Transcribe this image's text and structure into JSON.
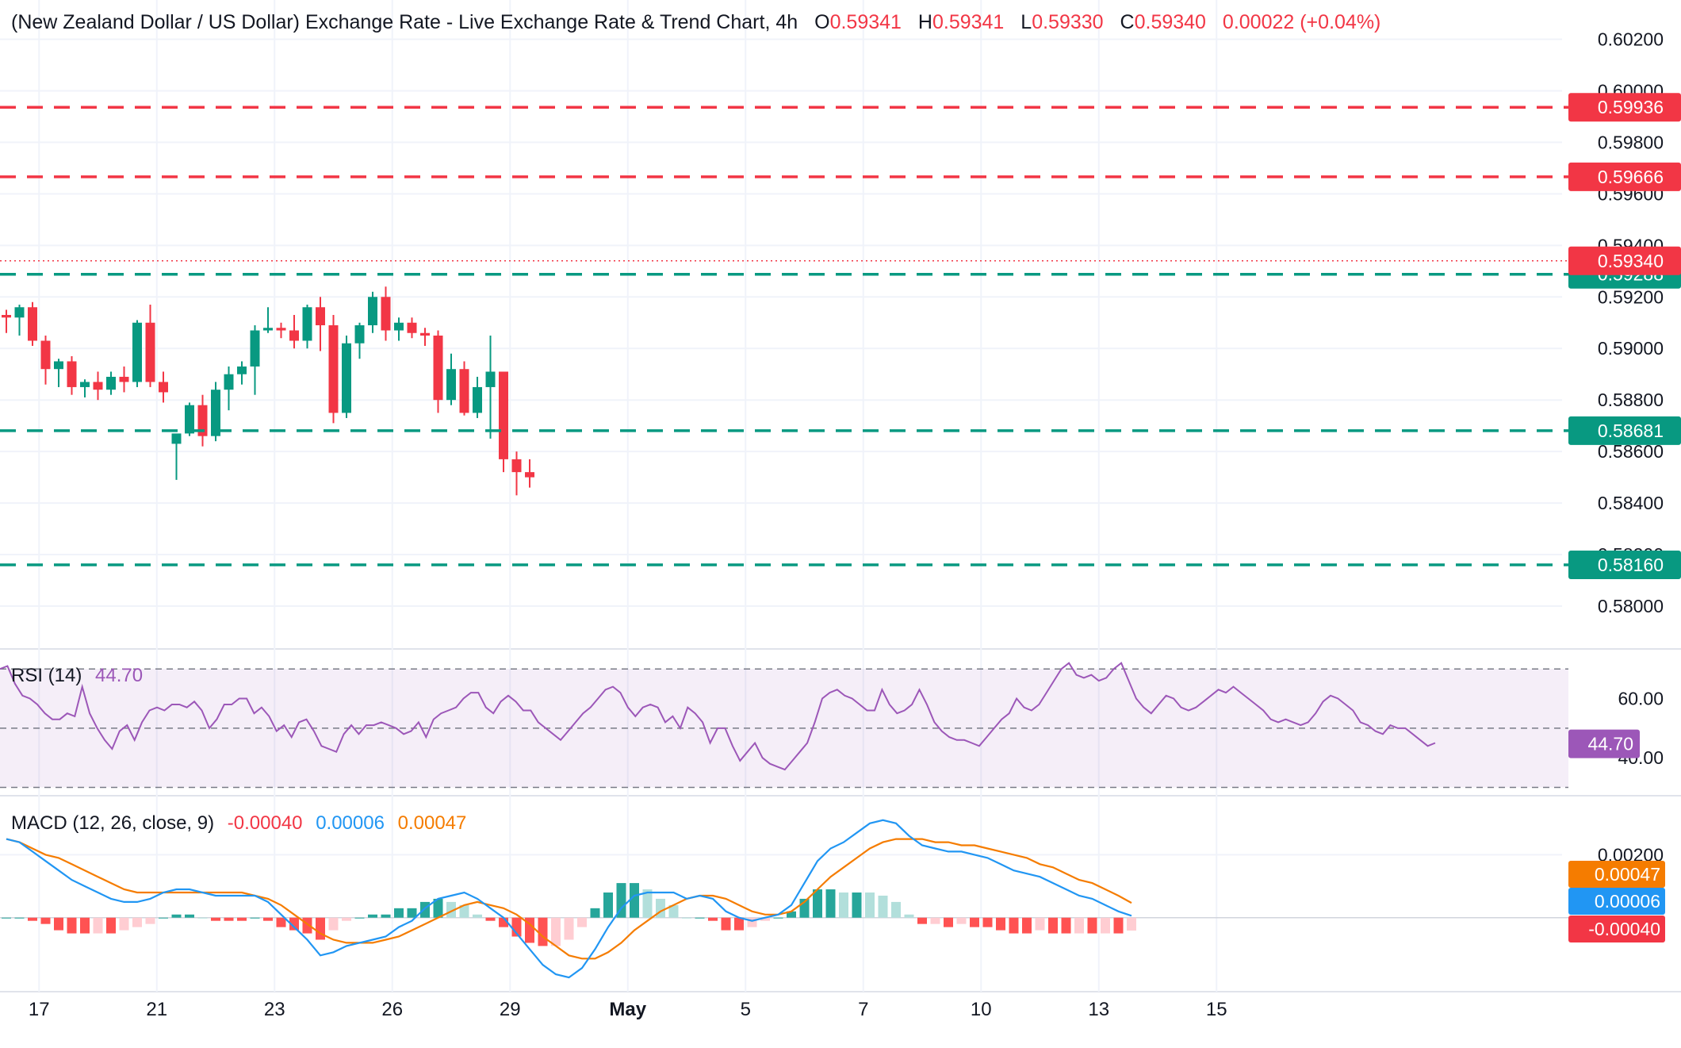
{
  "header": {
    "title": "(New Zealand Dollar / US Dollar) Exchange Rate - Live Exchange Rate & Trend Chart",
    "interval": "4h",
    "open_label": "O",
    "open": "0.59341",
    "high_label": "H",
    "high": "0.59341",
    "low_label": "L",
    "low": "0.59330",
    "close_label": "C",
    "close": "0.59340",
    "change": "0.00022 (+0.04%)"
  },
  "chart_data": [
    {
      "type": "candlestick",
      "title": "(New Zealand Dollar / US Dollar) Exchange Rate - Live Exchange Rate & Trend Chart",
      "ylim": [
        0.5792,
        0.6026
      ],
      "y_ticks": [
        "0.60200",
        "0.60000",
        "0.59800",
        "0.59600",
        "0.59400",
        "0.59200",
        "0.59000",
        "0.58800",
        "0.58600",
        "0.58400",
        "0.58200",
        "0.58000"
      ],
      "x_ticks": [
        {
          "label": "17",
          "idx": 2.5
        },
        {
          "label": "21",
          "idx": 11.5
        },
        {
          "label": "23",
          "idx": 20.5
        },
        {
          "label": "26",
          "idx": 29.5
        },
        {
          "label": "29",
          "idx": 38.5
        },
        {
          "label": "May",
          "idx": 47.5
        },
        {
          "label": "5",
          "idx": 56.5
        },
        {
          "label": "7",
          "idx": 65.5
        },
        {
          "label": "10",
          "idx": 74.5
        },
        {
          "label": "13",
          "idx": 83.5
        },
        {
          "label": "15",
          "idx": 92.5
        }
      ],
      "candles": [
        [
          0.5913,
          0.5915,
          0.5906,
          0.5912
        ],
        [
          0.5912,
          0.5917,
          0.5905,
          0.5916
        ],
        [
          0.5916,
          0.5918,
          0.5901,
          0.5903
        ],
        [
          0.5903,
          0.5905,
          0.5886,
          0.5892
        ],
        [
          0.5892,
          0.5896,
          0.5885,
          0.5895
        ],
        [
          0.5895,
          0.5897,
          0.5882,
          0.5885
        ],
        [
          0.5885,
          0.5888,
          0.5881,
          0.5887
        ],
        [
          0.5887,
          0.5891,
          0.588,
          0.5884
        ],
        [
          0.5884,
          0.5891,
          0.5882,
          0.5889
        ],
        [
          0.5889,
          0.5893,
          0.5883,
          0.5887
        ],
        [
          0.5887,
          0.5911,
          0.5885,
          0.591
        ],
        [
          0.591,
          0.5917,
          0.5885,
          0.5887
        ],
        [
          0.5887,
          0.5891,
          0.5879,
          0.5883
        ],
        [
          0.5863,
          0.5866,
          0.5849,
          0.5867
        ],
        [
          0.5867,
          0.5879,
          0.5866,
          0.5878
        ],
        [
          0.5878,
          0.5882,
          0.5862,
          0.5866
        ],
        [
          0.5866,
          0.5887,
          0.5864,
          0.5884
        ],
        [
          0.5884,
          0.5893,
          0.5876,
          0.589
        ],
        [
          0.589,
          0.5895,
          0.5886,
          0.5893
        ],
        [
          0.5893,
          0.5909,
          0.5882,
          0.5907
        ],
        [
          0.5907,
          0.5916,
          0.5906,
          0.5908
        ],
        [
          0.5908,
          0.591,
          0.5904,
          0.5907
        ],
        [
          0.5907,
          0.5913,
          0.59,
          0.5903
        ],
        [
          0.5903,
          0.5917,
          0.59,
          0.5916
        ],
        [
          0.5916,
          0.592,
          0.5899,
          0.5909
        ],
        [
          0.5909,
          0.5913,
          0.5871,
          0.5875
        ],
        [
          0.5875,
          0.5905,
          0.5873,
          0.5902
        ],
        [
          0.5902,
          0.591,
          0.5896,
          0.5909
        ],
        [
          0.5909,
          0.5922,
          0.5906,
          0.592
        ],
        [
          0.592,
          0.5924,
          0.5903,
          0.5907
        ],
        [
          0.5907,
          0.5912,
          0.5903,
          0.591
        ],
        [
          0.591,
          0.5912,
          0.5904,
          0.5906
        ],
        [
          0.5906,
          0.5908,
          0.5901,
          0.5905
        ],
        [
          0.5905,
          0.5907,
          0.5875,
          0.588
        ],
        [
          0.588,
          0.5898,
          0.5878,
          0.5892
        ],
        [
          0.5892,
          0.5895,
          0.5874,
          0.5875
        ],
        [
          0.5875,
          0.5889,
          0.5873,
          0.5885
        ],
        [
          0.5885,
          0.5905,
          0.5865,
          0.5891
        ],
        [
          0.5891,
          0.5889,
          0.5852,
          0.5857
        ],
        [
          0.5857,
          0.586,
          0.5843,
          0.5852
        ],
        [
          0.5852,
          0.5857,
          0.5846,
          0.585
        ]
      ],
      "support_resistance": [
        {
          "value": 0.59936,
          "label": "0.59936",
          "kind": "resistance"
        },
        {
          "value": 0.59666,
          "label": "0.59666",
          "kind": "resistance"
        },
        {
          "value": 0.59288,
          "label": "0.59288",
          "kind": "support"
        },
        {
          "value": 0.58681,
          "label": "0.58681",
          "kind": "support"
        },
        {
          "value": 0.5816,
          "label": "0.58160",
          "kind": "support"
        }
      ],
      "last_price": {
        "value": 0.5934,
        "label": "0.59340"
      }
    },
    {
      "type": "line",
      "name": "RSI (14)",
      "last_label": "44.70",
      "ylim": [
        28,
        73
      ],
      "y_ticks": [
        "60.00",
        "40.00"
      ],
      "bands": [
        70,
        50,
        30
      ],
      "values": [
        70,
        71,
        65,
        61,
        60,
        58,
        55,
        53,
        53,
        55,
        54,
        64,
        55,
        50,
        46,
        43,
        49,
        51,
        46,
        52,
        56,
        57,
        56,
        58,
        58,
        57,
        59,
        56,
        50,
        53,
        58,
        58,
        60,
        60,
        55,
        57,
        54,
        49,
        51,
        47,
        52,
        53,
        49,
        44,
        43,
        42,
        48,
        51,
        48,
        51,
        51,
        52,
        51,
        50,
        48,
        49,
        52,
        47,
        53,
        55,
        56,
        57,
        60,
        62,
        62,
        57,
        55,
        59,
        61,
        59,
        56,
        56,
        52,
        50,
        48,
        46,
        49,
        52,
        55,
        57,
        60,
        63,
        64,
        62,
        57,
        54,
        57,
        58,
        57,
        52,
        54,
        50,
        57,
        55,
        52,
        45,
        50,
        50,
        44,
        39,
        42,
        45,
        40,
        38,
        37,
        36,
        39,
        42,
        45,
        52,
        60,
        62,
        63,
        61,
        60,
        58,
        56,
        56,
        63,
        58,
        55,
        56,
        58,
        63,
        58,
        52,
        49,
        47,
        46,
        46,
        45,
        44,
        47,
        50,
        53,
        55,
        60,
        57,
        56,
        58,
        62,
        66,
        70,
        72,
        68,
        67,
        68,
        66,
        67,
        70,
        72,
        66,
        60,
        57,
        55,
        58,
        61,
        60,
        57,
        56,
        57,
        59,
        61,
        63,
        62,
        64,
        62,
        60,
        58,
        56,
        53,
        52,
        53,
        52,
        51,
        52,
        55,
        59,
        61,
        60,
        58,
        56,
        52,
        51,
        49,
        48,
        51,
        50,
        50,
        48,
        46,
        44,
        45
      ]
    },
    {
      "type": "macd",
      "name": "MACD (12, 26, close, 9)",
      "labels": {
        "histogram": "-0.00040",
        "macd": "0.00006",
        "signal": "0.00047"
      },
      "ylim": [
        -0.0021,
        0.0037
      ],
      "y_ticks": [
        "0.00200"
      ],
      "macd": [
        0.0025,
        0.0024,
        0.0021,
        0.0018,
        0.0015,
        0.0012,
        0.001,
        0.0008,
        0.0006,
        0.0005,
        0.0005,
        0.0006,
        0.0008,
        0.0009,
        0.0009,
        0.0008,
        0.0007,
        0.0007,
        0.0007,
        0.0007,
        0.0005,
        0.0001,
        -0.0003,
        -0.0007,
        -0.0012,
        -0.0011,
        -0.0009,
        -0.0008,
        -0.0007,
        -0.0006,
        -0.0003,
        -0.0001,
        0.0003,
        0.0006,
        0.0007,
        0.0008,
        0.0006,
        0.0003,
        0.0,
        -0.0005,
        -0.001,
        -0.0015,
        -0.0018,
        -0.0019,
        -0.0016,
        -0.001,
        -0.0003,
        0.0003,
        0.0007,
        0.0008,
        0.0008,
        0.0008,
        0.0006,
        0.0007,
        0.0006,
        0.0002,
        0.0,
        -0.0001,
        0.0,
        0.0001,
        0.0004,
        0.0011,
        0.0018,
        0.0022,
        0.0024,
        0.0027,
        0.003,
        0.0031,
        0.003,
        0.0026,
        0.0023,
        0.0022,
        0.0021,
        0.0021,
        0.002,
        0.0019,
        0.0017,
        0.0015,
        0.0014,
        0.0013,
        0.0011,
        0.0009,
        0.0007,
        0.0006,
        0.0004,
        0.0002,
        6e-05
      ],
      "signal": [
        0.0025,
        0.0024,
        0.0022,
        0.002,
        0.0019,
        0.0017,
        0.0015,
        0.0013,
        0.0011,
        0.0009,
        0.0008,
        0.0008,
        0.0008,
        0.0008,
        0.0008,
        0.0008,
        0.0008,
        0.0008,
        0.0008,
        0.0007,
        0.0006,
        0.0004,
        0.0001,
        -0.0002,
        -0.0005,
        -0.0007,
        -0.0008,
        -0.0008,
        -0.0008,
        -0.0007,
        -0.0006,
        -0.0004,
        -0.0002,
        0.0,
        0.0002,
        0.0004,
        0.0005,
        0.0004,
        0.0003,
        0.0001,
        -0.0002,
        -0.0006,
        -0.0009,
        -0.0012,
        -0.0013,
        -0.0013,
        -0.0011,
        -0.0008,
        -0.0004,
        -0.0001,
        0.0002,
        0.0004,
        0.0006,
        0.0007,
        0.0007,
        0.0006,
        0.0004,
        0.0002,
        0.0001,
        0.0001,
        0.0002,
        0.0005,
        0.0009,
        0.0013,
        0.0016,
        0.0019,
        0.0022,
        0.0024,
        0.0025,
        0.0025,
        0.0025,
        0.0024,
        0.0024,
        0.0023,
        0.0023,
        0.0022,
        0.0021,
        0.002,
        0.0019,
        0.0017,
        0.0016,
        0.0014,
        0.0012,
        0.0011,
        0.0009,
        0.0007,
        0.00047
      ]
    }
  ]
}
